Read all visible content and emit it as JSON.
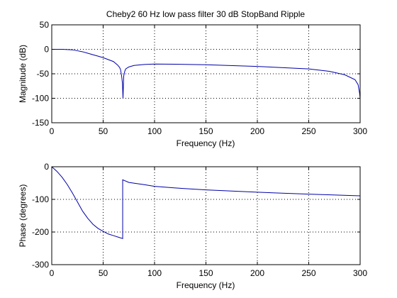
{
  "title": "Cheby2 60 Hz low pass filter 30 dB StopBand Ripple",
  "line_color": "#0000aa",
  "chart_data": [
    {
      "type": "line",
      "title": "Cheby2 60 Hz low pass filter 30 dB StopBand Ripple",
      "xlabel": "Frequency (Hz)",
      "ylabel": "Magnitude (dB)",
      "xlim": [
        0,
        300
      ],
      "ylim": [
        -150,
        50
      ],
      "xticks": [
        0,
        50,
        100,
        150,
        200,
        250,
        300
      ],
      "yticks": [
        50,
        0,
        -50,
        -100,
        -150
      ],
      "xtick_labels": [
        "0",
        "50",
        "100",
        "150",
        "200",
        "250",
        "300"
      ],
      "ytick_labels": [
        "50",
        "0",
        "-50",
        "-100",
        "-150"
      ],
      "grid": true,
      "series": [
        {
          "x": [
            0,
            10,
            20,
            25,
            30,
            35,
            40,
            45,
            50,
            55,
            60,
            64,
            66,
            67,
            68,
            68.8,
            69.3,
            70,
            71,
            72,
            75,
            80,
            90,
            100,
            120,
            150,
            200,
            250,
            270,
            285,
            295,
            298,
            299.5,
            300
          ],
          "y": [
            0,
            0,
            -1,
            -3,
            -5,
            -8,
            -11,
            -14,
            -17,
            -21,
            -25,
            -32,
            -37,
            -42,
            -55,
            -70,
            -100,
            -55,
            -45,
            -40,
            -36,
            -33,
            -31,
            -30,
            -30.5,
            -31.5,
            -35,
            -40,
            -45,
            -52,
            -62,
            -72,
            -90,
            -100
          ]
        }
      ]
    },
    {
      "type": "line",
      "xlabel": "Frequency (Hz)",
      "ylabel": "Phase (degrees)",
      "xlim": [
        0,
        300
      ],
      "ylim": [
        -300,
        0
      ],
      "xticks": [
        0,
        50,
        100,
        150,
        200,
        250,
        300
      ],
      "yticks": [
        0,
        -100,
        -200,
        -300
      ],
      "xtick_labels": [
        "0",
        "50",
        "100",
        "150",
        "200",
        "250",
        "300"
      ],
      "ytick_labels": [
        "0",
        "-100",
        "-200",
        "-300"
      ],
      "grid": true,
      "series": [
        {
          "x": [
            0,
            5,
            10,
            15,
            20,
            25,
            30,
            35,
            40,
            45,
            50,
            55,
            60,
            65,
            69,
            69.01,
            75,
            90,
            100,
            120,
            150,
            200,
            250,
            300
          ],
          "y": [
            0,
            -14,
            -32,
            -54,
            -80,
            -108,
            -136,
            -158,
            -176,
            -189,
            -198,
            -206,
            -211,
            -216,
            -220,
            -40,
            -48,
            -55,
            -60,
            -65,
            -71,
            -78,
            -84,
            -89
          ]
        }
      ]
    }
  ]
}
